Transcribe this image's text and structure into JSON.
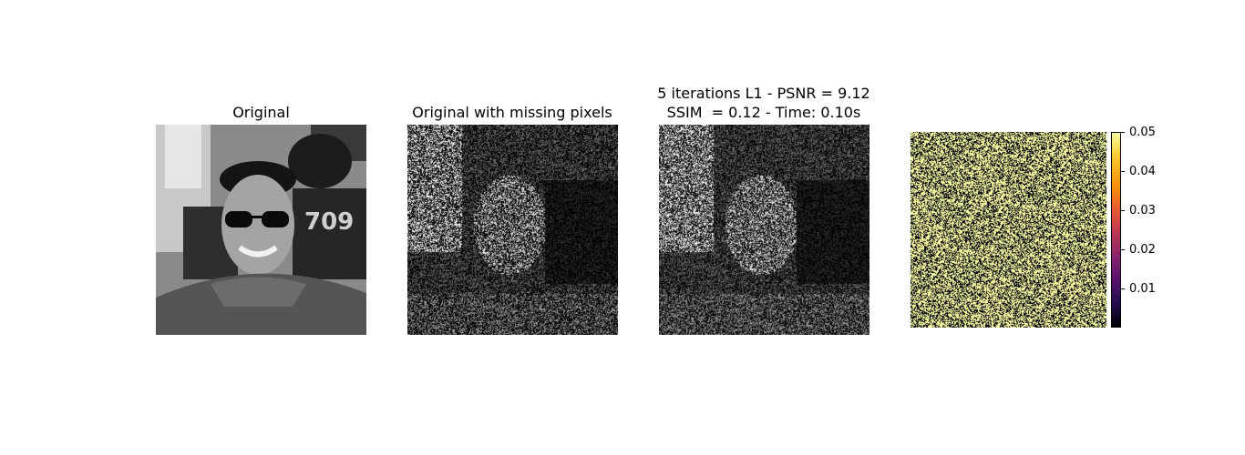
{
  "panels": [
    {
      "title": "Original"
    },
    {
      "title": "Original with missing pixels"
    },
    {
      "title_line1": "5 iterations L1 - PSNR = 9.12",
      "title_line2": "SSIM  = 0.12 - Time: 0.10s"
    }
  ],
  "colorbar": {
    "colormap": "inferno",
    "ticks": [
      "0.05",
      "0.04",
      "0.03",
      "0.02",
      "0.01"
    ]
  }
}
